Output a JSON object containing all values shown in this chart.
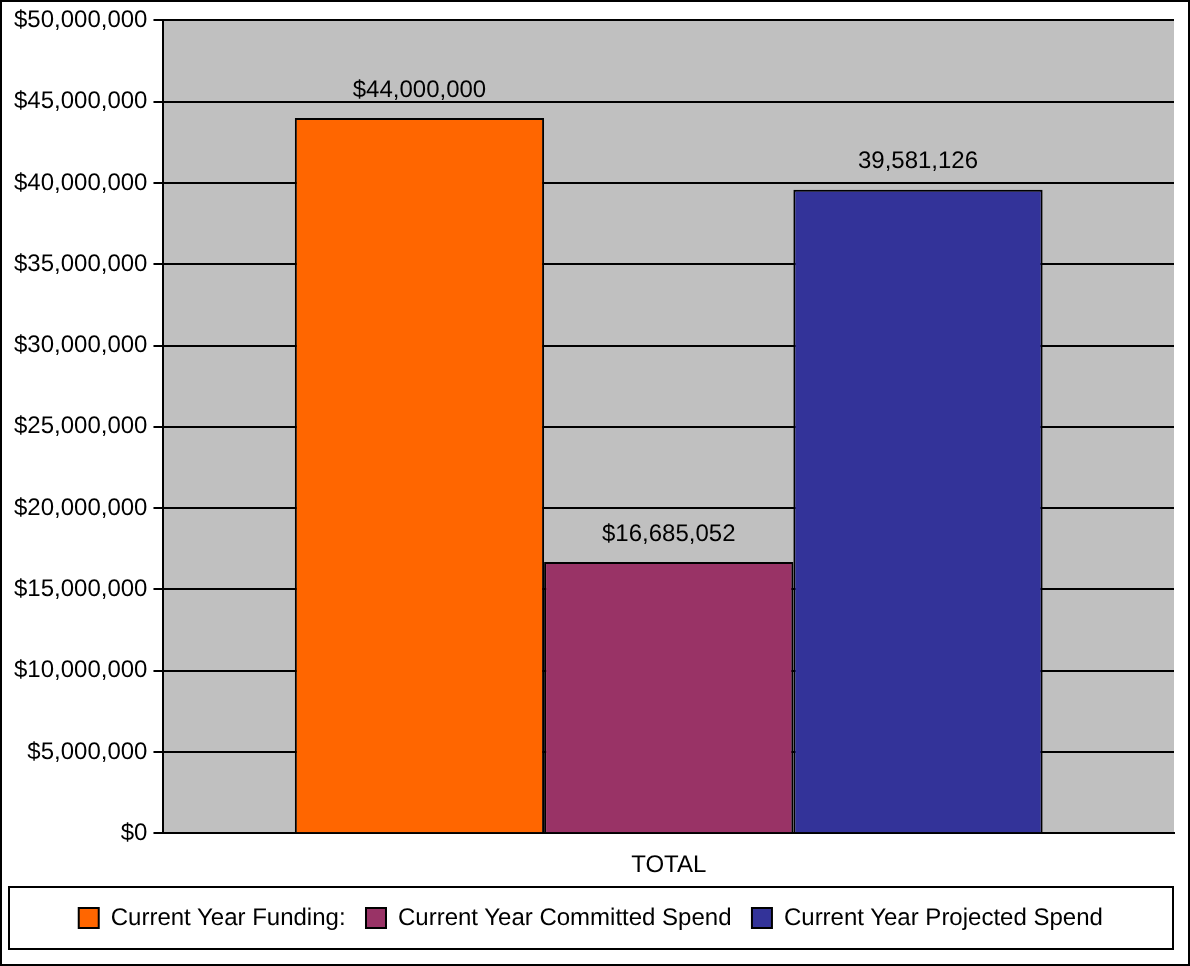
{
  "chart_data": {
    "type": "bar",
    "categories": [
      "TOTAL"
    ],
    "series": [
      {
        "name": "Current Year Funding:",
        "color": "#ff6600",
        "values": [
          44000000
        ],
        "value_labels": [
          "$44,000,000"
        ]
      },
      {
        "name": "Current Year Committed Spend",
        "color": "#993366",
        "values": [
          16685052
        ],
        "value_labels": [
          "$16,685,052"
        ]
      },
      {
        "name": "Current Year Projected Spend",
        "color": "#333399",
        "values": [
          39581126
        ],
        "value_labels": [
          "39,581,126"
        ]
      }
    ],
    "ylim": [
      0,
      50000000
    ],
    "yticks": [
      {
        "value": 0,
        "label": "$0"
      },
      {
        "value": 5000000,
        "label": "$5,000,000"
      },
      {
        "value": 10000000,
        "label": "$10,000,000"
      },
      {
        "value": 15000000,
        "label": "$15,000,000"
      },
      {
        "value": 20000000,
        "label": "$20,000,000"
      },
      {
        "value": 25000000,
        "label": "$25,000,000"
      },
      {
        "value": 30000000,
        "label": "$30,000,000"
      },
      {
        "value": 35000000,
        "label": "$35,000,000"
      },
      {
        "value": 40000000,
        "label": "$40,000,000"
      },
      {
        "value": 45000000,
        "label": "$45,000,000"
      },
      {
        "value": 50000000,
        "label": "$50,000,000"
      }
    ],
    "grid": "y",
    "legend": "bottom"
  }
}
